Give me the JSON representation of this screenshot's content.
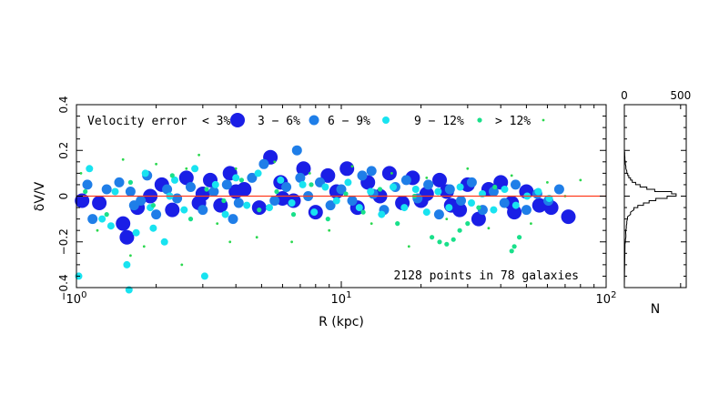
{
  "chart_data": [
    {
      "type": "scatter",
      "title": "",
      "xlabel": "R (kpc)",
      "ylabel": "δV/V",
      "x_scale": "log",
      "xlim": [
        1,
        100
      ],
      "ylim": [
        -0.4,
        0.4
      ],
      "x_tick_labels": [
        {
          "base": "10",
          "exp": "0",
          "value": 1
        },
        {
          "base": "10",
          "exp": "1",
          "value": 10
        },
        {
          "base": "10",
          "exp": "2",
          "value": 100
        }
      ],
      "y_ticks": [
        {
          "label": "0.4",
          "value": 0.4
        },
        {
          "label": "0.2",
          "value": 0.2
        },
        {
          "label": "0",
          "value": 0
        },
        {
          "label": "−0.2",
          "value": -0.2
        },
        {
          "label": "−0.4",
          "value": -0.4
        }
      ],
      "reference_line": {
        "y": 0,
        "color": "#ff3b1f"
      },
      "legend_title": "Velocity error",
      "legend": [
        {
          "label": "< 3%",
          "color": "#1a1ee6"
        },
        {
          "label": "3 − 6%",
          "color": "#1f7ee8"
        },
        {
          "label": "6 − 9%",
          "color": "#18e3f0"
        },
        {
          "label": "9 − 12%",
          "color": "#19e08a"
        },
        {
          "label": "> 12%",
          "color": "#2bd84f"
        }
      ],
      "annotation": "2128 points in 78 galaxies",
      "series": [
        {
          "name": "< 3%",
          "color": "#1a1ee6",
          "points": [
            [
              1.05,
              -0.02
            ],
            [
              1.22,
              -0.03
            ],
            [
              1.5,
              -0.12
            ],
            [
              1.55,
              -0.18
            ],
            [
              1.7,
              -0.05
            ],
            [
              1.9,
              0.0
            ],
            [
              2.1,
              0.05
            ],
            [
              2.3,
              -0.06
            ],
            [
              2.6,
              0.08
            ],
            [
              2.9,
              -0.03
            ],
            [
              3.2,
              0.07
            ],
            [
              3.5,
              -0.04
            ],
            [
              3.8,
              0.1
            ],
            [
              4.3,
              0.03
            ],
            [
              4.9,
              -0.05
            ],
            [
              5.4,
              0.17
            ],
            [
              5.9,
              0.06
            ],
            [
              6.6,
              -0.02
            ],
            [
              7.2,
              0.12
            ],
            [
              8.0,
              -0.07
            ],
            [
              8.9,
              0.09
            ],
            [
              9.6,
              0.02
            ],
            [
              10.5,
              0.12
            ],
            [
              11.5,
              -0.05
            ],
            [
              12.6,
              0.06
            ],
            [
              14.0,
              0.0
            ],
            [
              15.2,
              0.1
            ],
            [
              17.0,
              -0.03
            ],
            [
              18.6,
              0.08
            ],
            [
              21.0,
              0.01
            ],
            [
              23.5,
              0.07
            ],
            [
              26.0,
              -0.04
            ],
            [
              28.0,
              -0.06
            ],
            [
              30.0,
              0.05
            ],
            [
              33.0,
              -0.1
            ],
            [
              36.0,
              0.03
            ],
            [
              40.0,
              0.06
            ],
            [
              44.0,
              -0.03
            ],
            [
              50.0,
              0.02
            ],
            [
              56.0,
              -0.04
            ],
            [
              62.0,
              -0.05
            ],
            [
              72.0,
              -0.09
            ],
            [
              6.0,
              -0.01
            ],
            [
              4.0,
              0.02
            ],
            [
              3.0,
              0.01
            ],
            [
              20.0,
              -0.02
            ],
            [
              25.0,
              0.02
            ],
            [
              45.0,
              -0.07
            ]
          ]
        },
        {
          "name": "3 − 6%",
          "color": "#1f7ee8",
          "points": [
            [
              1.1,
              0.05
            ],
            [
              1.15,
              -0.1
            ],
            [
              1.3,
              0.03
            ],
            [
              1.45,
              0.06
            ],
            [
              1.6,
              0.02
            ],
            [
              1.75,
              -0.02
            ],
            [
              1.85,
              0.09
            ],
            [
              2.0,
              -0.08
            ],
            [
              2.2,
              0.03
            ],
            [
              2.4,
              -0.01
            ],
            [
              2.7,
              0.04
            ],
            [
              3.0,
              -0.06
            ],
            [
              3.3,
              0.02
            ],
            [
              3.7,
              0.05
            ],
            [
              4.1,
              -0.03
            ],
            [
              4.6,
              0.08
            ],
            [
              5.1,
              0.14
            ],
            [
              5.6,
              -0.02
            ],
            [
              6.2,
              0.04
            ],
            [
              6.8,
              0.2
            ],
            [
              7.5,
              0.0
            ],
            [
              8.3,
              0.06
            ],
            [
              9.1,
              -0.04
            ],
            [
              10.0,
              0.03
            ],
            [
              11.0,
              -0.02
            ],
            [
              12.0,
              0.09
            ],
            [
              13.2,
              0.01
            ],
            [
              14.5,
              -0.06
            ],
            [
              16.0,
              0.04
            ],
            [
              17.6,
              0.07
            ],
            [
              19.4,
              -0.01
            ],
            [
              21.3,
              0.05
            ],
            [
              23.4,
              -0.08
            ],
            [
              25.7,
              0.03
            ],
            [
              28.3,
              -0.02
            ],
            [
              31.1,
              0.06
            ],
            [
              34.2,
              -0.06
            ],
            [
              37.6,
              0.02
            ],
            [
              41.3,
              -0.03
            ],
            [
              45.5,
              0.05
            ],
            [
              50.0,
              -0.06
            ],
            [
              55.0,
              0.01
            ],
            [
              60.5,
              -0.02
            ],
            [
              66.5,
              0.03
            ],
            [
              1.65,
              -0.04
            ],
            [
              3.9,
              -0.1
            ],
            [
              7.0,
              0.08
            ],
            [
              13.0,
              0.11
            ]
          ]
        },
        {
          "name": "6 − 9%",
          "color": "#18e3f0",
          "points": [
            [
              1.02,
              -0.35
            ],
            [
              1.12,
              0.12
            ],
            [
              1.25,
              -0.1
            ],
            [
              1.4,
              0.02
            ],
            [
              1.55,
              -0.3
            ],
            [
              1.68,
              -0.16
            ],
            [
              1.82,
              0.1
            ],
            [
              1.95,
              -0.14
            ],
            [
              2.15,
              -0.2
            ],
            [
              2.35,
              0.07
            ],
            [
              2.55,
              -0.06
            ],
            [
              2.8,
              0.12
            ],
            [
              3.05,
              -0.35
            ],
            [
              3.35,
              0.05
            ],
            [
              3.65,
              -0.08
            ],
            [
              4.0,
              0.08
            ],
            [
              4.4,
              -0.04
            ],
            [
              4.85,
              0.1
            ],
            [
              5.35,
              -0.05
            ],
            [
              5.9,
              0.07
            ],
            [
              6.5,
              -0.03
            ],
            [
              7.15,
              0.05
            ],
            [
              7.9,
              -0.07
            ],
            [
              8.7,
              0.04
            ],
            [
              9.6,
              -0.02
            ],
            [
              10.6,
              0.06
            ],
            [
              11.7,
              -0.05
            ],
            [
              12.9,
              0.02
            ],
            [
              14.2,
              -0.08
            ],
            [
              15.7,
              0.04
            ],
            [
              17.3,
              -0.05
            ],
            [
              19.1,
              0.03
            ],
            [
              21.0,
              -0.07
            ],
            [
              23.2,
              0.02
            ],
            [
              25.5,
              -0.05
            ],
            [
              28.1,
              0.04
            ],
            [
              31.0,
              -0.03
            ],
            [
              34.1,
              0.01
            ],
            [
              37.6,
              -0.06
            ],
            [
              41.4,
              0.03
            ],
            [
              45.6,
              -0.04
            ],
            [
              50.3,
              0.0
            ],
            [
              55.4,
              0.02
            ],
            [
              61.0,
              -0.01
            ],
            [
              1.35,
              -0.13
            ],
            [
              1.58,
              -0.41
            ],
            [
              2.25,
              0.0
            ],
            [
              1.9,
              -0.05
            ]
          ]
        },
        {
          "name": "9 − 12%",
          "color": "#19e08a",
          "points": [
            [
              1.08,
              0.02
            ],
            [
              1.3,
              -0.08
            ],
            [
              1.6,
              0.06
            ],
            [
              1.95,
              -0.04
            ],
            [
              2.3,
              0.09
            ],
            [
              2.7,
              -0.1
            ],
            [
              3.1,
              0.03
            ],
            [
              3.6,
              -0.02
            ],
            [
              4.2,
              0.07
            ],
            [
              4.9,
              -0.06
            ],
            [
              5.7,
              0.02
            ],
            [
              6.6,
              -0.08
            ],
            [
              7.7,
              0.05
            ],
            [
              8.9,
              -0.1
            ],
            [
              10.4,
              0.01
            ],
            [
              12.1,
              -0.07
            ],
            [
              14.0,
              0.03
            ],
            [
              16.3,
              -0.12
            ],
            [
              18.9,
              0.0
            ],
            [
              22.0,
              -0.18
            ],
            [
              23.5,
              -0.2
            ],
            [
              25.0,
              -0.21
            ],
            [
              26.5,
              -0.19
            ],
            [
              28.0,
              -0.15
            ],
            [
              30.0,
              -0.12
            ],
            [
              33.0,
              -0.05
            ],
            [
              38.0,
              0.04
            ],
            [
              44.0,
              -0.24
            ],
            [
              45.0,
              -0.22
            ],
            [
              47.0,
              -0.18
            ]
          ]
        },
        {
          "name": "> 12%",
          "color": "#2bd84f",
          "points": [
            [
              1.04,
              0.1
            ],
            [
              1.2,
              -0.15
            ],
            [
              1.5,
              0.16
            ],
            [
              1.8,
              -0.22
            ],
            [
              2.0,
              0.14
            ],
            [
              2.5,
              -0.3
            ],
            [
              2.9,
              0.18
            ],
            [
              3.4,
              -0.12
            ],
            [
              4.0,
              0.12
            ],
            [
              4.8,
              -0.18
            ],
            [
              5.6,
              0.15
            ],
            [
              6.5,
              -0.2
            ],
            [
              7.6,
              0.1
            ],
            [
              9.0,
              -0.15
            ],
            [
              11.0,
              0.13
            ],
            [
              13.0,
              -0.12
            ],
            [
              15.5,
              0.1
            ],
            [
              18.0,
              -0.22
            ],
            [
              21.0,
              0.08
            ],
            [
              25.0,
              -0.1
            ],
            [
              30.0,
              0.12
            ],
            [
              36.0,
              -0.14
            ],
            [
              44.0,
              0.09
            ],
            [
              52.0,
              -0.12
            ],
            [
              60.0,
              0.06
            ],
            [
              70.0,
              0.0
            ],
            [
              80.0,
              0.07
            ],
            [
              1.6,
              -0.26
            ],
            [
              2.6,
              0.12
            ],
            [
              3.8,
              -0.2
            ]
          ]
        }
      ]
    },
    {
      "type": "histogram",
      "orientation": "horizontal",
      "xlabel": "N",
      "x_ticks": [
        {
          "label": "0",
          "value": 0
        },
        {
          "label": "500",
          "value": 500
        }
      ],
      "xlim": [
        0,
        550
      ],
      "ylim": [
        -0.4,
        0.4
      ],
      "bin_width": 0.01,
      "bins": [
        {
          "y": -0.4,
          "n": 0
        },
        {
          "y": -0.22,
          "n": 6
        },
        {
          "y": -0.2,
          "n": 10
        },
        {
          "y": -0.18,
          "n": 14
        },
        {
          "y": -0.16,
          "n": 12
        },
        {
          "y": -0.14,
          "n": 18
        },
        {
          "y": -0.12,
          "n": 22
        },
        {
          "y": -0.1,
          "n": 28
        },
        {
          "y": -0.08,
          "n": 55
        },
        {
          "y": -0.06,
          "n": 85
        },
        {
          "y": -0.05,
          "n": 120
        },
        {
          "y": -0.04,
          "n": 170
        },
        {
          "y": -0.03,
          "n": 220
        },
        {
          "y": -0.02,
          "n": 280
        },
        {
          "y": -0.01,
          "n": 380
        },
        {
          "y": 0.0,
          "n": 460
        },
        {
          "y": 0.01,
          "n": 420
        },
        {
          "y": 0.02,
          "n": 270
        },
        {
          "y": 0.03,
          "n": 200
        },
        {
          "y": 0.04,
          "n": 140
        },
        {
          "y": 0.05,
          "n": 100
        },
        {
          "y": 0.06,
          "n": 70
        },
        {
          "y": 0.07,
          "n": 55
        },
        {
          "y": 0.08,
          "n": 40
        },
        {
          "y": 0.09,
          "n": 30
        },
        {
          "y": 0.1,
          "n": 22
        },
        {
          "y": 0.12,
          "n": 14
        },
        {
          "y": 0.14,
          "n": 9
        },
        {
          "y": 0.16,
          "n": 5
        },
        {
          "y": 0.18,
          "n": 3
        },
        {
          "y": 0.2,
          "n": 0
        }
      ]
    }
  ]
}
